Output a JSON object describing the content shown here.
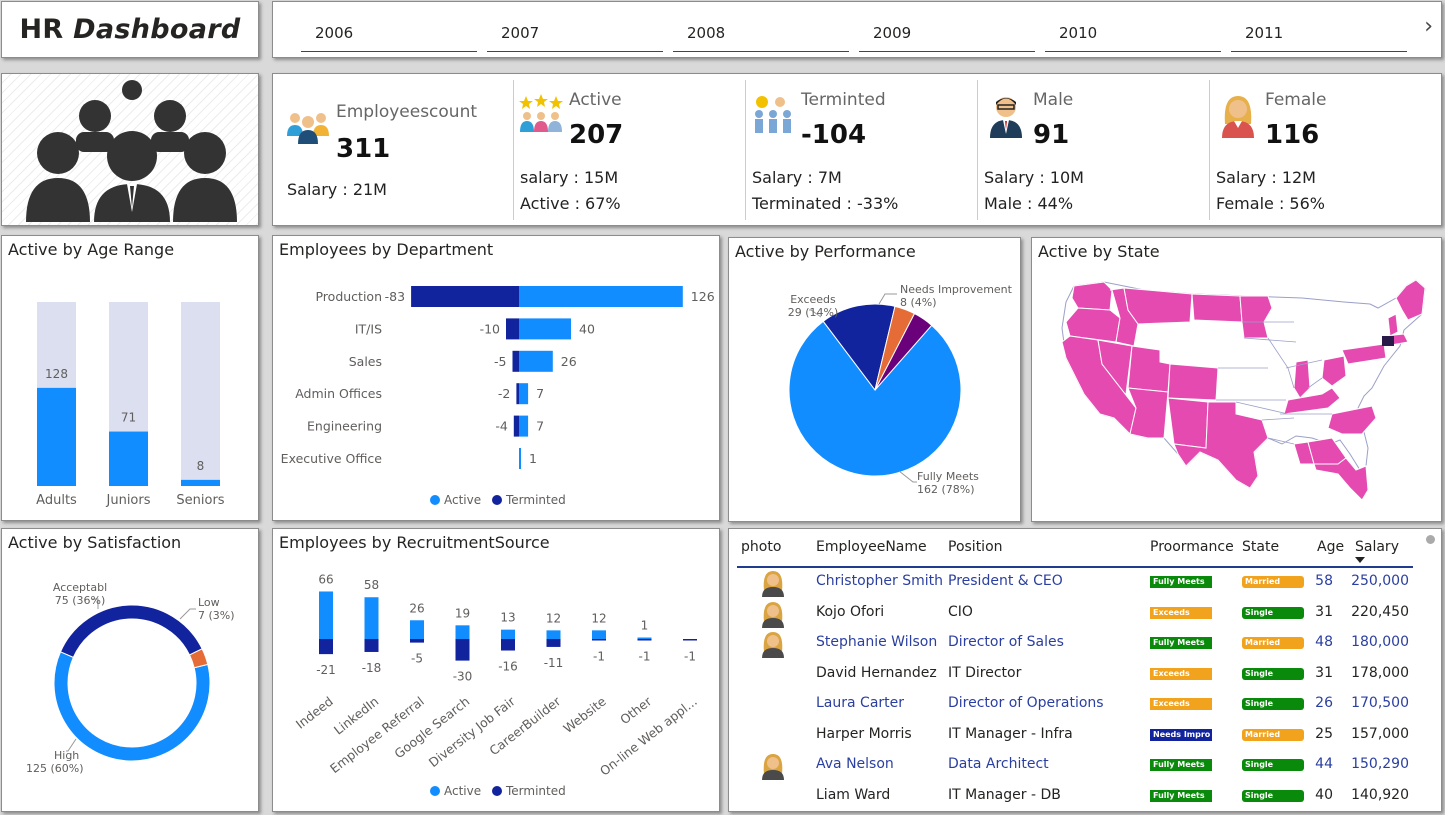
{
  "header": {
    "title_plain": "HR",
    "title_italic": "Dashboard",
    "years": [
      "2006",
      "2007",
      "2008",
      "2009",
      "2010",
      "2011"
    ]
  },
  "kpis": [
    {
      "label": "Employeescount",
      "value": "311",
      "sub1": "Salary : 21M",
      "sub2": "",
      "icon": "employees-group-icon"
    },
    {
      "label": "Active",
      "value": "207",
      "sub1": "salary : 15M",
      "sub2": "Active : 67%",
      "icon": "active-stars-icon"
    },
    {
      "label": "Terminted",
      "value": "-104",
      "sub1": "Salary : 7M",
      "sub2": "Terminated : -33%",
      "icon": "terminated-icon"
    },
    {
      "label": "Male",
      "value": "91",
      "sub1": "Salary : 10M",
      "sub2": "Male : 44%",
      "icon": "male-avatar-icon"
    },
    {
      "label": "Female",
      "value": "116",
      "sub1": "Salary : 12M",
      "sub2": "Female : 56%",
      "icon": "female-avatar-icon"
    }
  ],
  "colors": {
    "active": "#118dff",
    "terminated": "#12239e",
    "track": "#dcdff0",
    "pink": "#e44ab0",
    "orange": "#e66c37",
    "purple": "#6b007b",
    "fully_meets": "#0a8a0a",
    "exceeds": "#f2a31d",
    "needs_improvement": "#12239e",
    "married": "#f2a31d",
    "single": "#0a8a0a"
  },
  "chart_data": [
    {
      "id": "age",
      "type": "bar",
      "title": "Active by Age Range",
      "categories": [
        "Adults",
        "Juniors",
        "Seniors"
      ],
      "values": [
        128,
        71,
        8
      ],
      "track_max": 240
    },
    {
      "id": "dept",
      "type": "bar",
      "title": "Employees by Department",
      "categories": [
        "Production",
        "IT/IS",
        "Sales",
        "Admin Offices",
        "Engineering",
        "Executive Office"
      ],
      "series": [
        {
          "name": "Active",
          "values": [
            126,
            40,
            26,
            7,
            7,
            1
          ]
        },
        {
          "name": "Terminted",
          "values": [
            -83,
            -10,
            -5,
            -2,
            -4,
            null
          ]
        }
      ]
    },
    {
      "id": "perf",
      "type": "pie",
      "title": "Active by Performance",
      "slices": [
        {
          "label": "Fully Meets",
          "value": 162,
          "pct": "78%"
        },
        {
          "label": "Exceeds",
          "value": 29,
          "pct": "14%"
        },
        {
          "label": "Needs Improvement",
          "value": 8,
          "pct": "4%"
        },
        {
          "label": "",
          "value": 8,
          "pct": ""
        }
      ]
    },
    {
      "id": "sat",
      "type": "pie",
      "title": "Active by Satisfaction",
      "slices": [
        {
          "label": "High",
          "value": 125,
          "pct": "60%"
        },
        {
          "label": "Acceptabl",
          "value": 75,
          "pct": "36%"
        },
        {
          "label": "Low",
          "value": 7,
          "pct": "3%"
        }
      ]
    },
    {
      "id": "rec",
      "type": "bar",
      "title": "Employees by RecruitmentSource",
      "categories": [
        "Indeed",
        "LinkedIn",
        "Employee Referral",
        "Google Search",
        "Diversity Job Fair",
        "CareerBuilder",
        "Website",
        "Other",
        "On-line Web appl..."
      ],
      "series": [
        {
          "name": "Active",
          "values": [
            66,
            58,
            26,
            19,
            13,
            12,
            12,
            1,
            null
          ]
        },
        {
          "name": "Terminted",
          "values": [
            -21,
            -18,
            -5,
            -30,
            -16,
            -11,
            -1,
            -1,
            -1
          ]
        }
      ]
    },
    {
      "id": "state",
      "type": "map",
      "title": "Active by State"
    }
  ],
  "legend": {
    "active": "Active",
    "terminated": "Terminted"
  },
  "table": {
    "headers": {
      "photo": "photo",
      "name": "EmployeeName",
      "position": "Position",
      "performance": "Proormance",
      "state": "State",
      "age": "Age",
      "salary": "Salary"
    },
    "rows": [
      {
        "photo": true,
        "name": "Christopher Smith",
        "position": "President & CEO",
        "perf": "Fully Meets",
        "status": "Married",
        "age": "58",
        "salary": "250,000",
        "blue": true
      },
      {
        "photo": true,
        "name": "Kojo Ofori",
        "position": "CIO",
        "perf": "Exceeds",
        "status": "Single",
        "age": "31",
        "salary": "220,450",
        "blue": false
      },
      {
        "photo": true,
        "name": "Stephanie Wilson",
        "position": "Director of Sales",
        "perf": "Fully Meets",
        "status": "Married",
        "age": "48",
        "salary": "180,000",
        "blue": true
      },
      {
        "photo": false,
        "name": "David Hernandez",
        "position": "IT Director",
        "perf": "Exceeds",
        "status": "Single",
        "age": "31",
        "salary": "178,000",
        "blue": false
      },
      {
        "photo": false,
        "name": "Laura Carter",
        "position": "Director of Operations",
        "perf": "Exceeds",
        "status": "Single",
        "age": "26",
        "salary": "170,500",
        "blue": true
      },
      {
        "photo": false,
        "name": "Harper Morris",
        "position": "IT Manager - Infra",
        "perf": "Needs Impro",
        "status": "Married",
        "age": "25",
        "salary": "157,000",
        "blue": false
      },
      {
        "photo": true,
        "name": "Ava Nelson",
        "position": "Data Architect",
        "perf": "Fully Meets",
        "status": "Single",
        "age": "44",
        "salary": "150,290",
        "blue": true
      },
      {
        "photo": false,
        "name": "Liam Ward",
        "position": "IT Manager - DB",
        "perf": "Fully Meets",
        "status": "Single",
        "age": "40",
        "salary": "140,920",
        "blue": false
      }
    ]
  }
}
